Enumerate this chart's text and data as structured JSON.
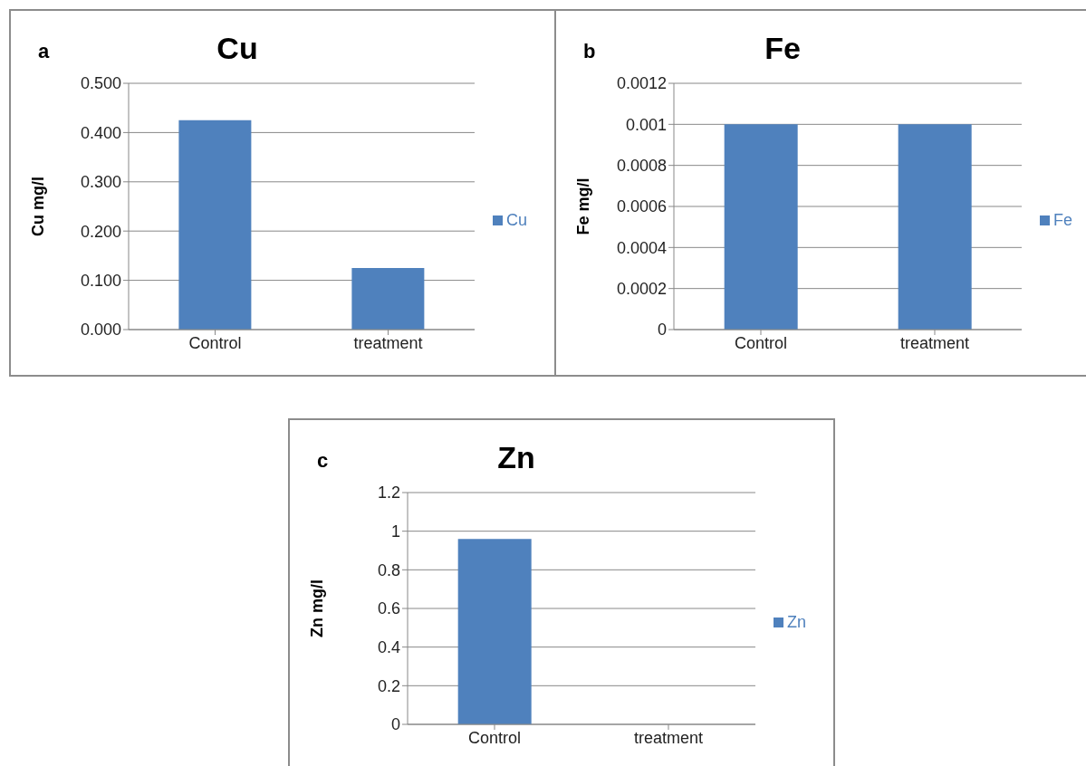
{
  "chart_data": [
    {
      "type": "bar",
      "title": "Cu",
      "annotations": [
        "a"
      ],
      "ylabel": "Cu mg/l",
      "categories": [
        "Control",
        "treatment"
      ],
      "series": [
        {
          "name": "Cu",
          "color": "#4f81bd",
          "values": [
            0.425,
            0.125
          ]
        }
      ],
      "ylim": [
        0,
        0.5
      ],
      "yticks": [
        {
          "value": 0,
          "label": "0.000"
        },
        {
          "value": 0.1,
          "label": "0.100"
        },
        {
          "value": 0.2,
          "label": "0.200"
        },
        {
          "value": 0.3,
          "label": "0.300"
        },
        {
          "value": 0.4,
          "label": "0.400"
        },
        {
          "value": 0.5,
          "label": "0.500"
        }
      ],
      "grid": "y",
      "legend": "right"
    },
    {
      "type": "bar",
      "title": "Fe",
      "annotations": [
        "b"
      ],
      "ylabel": "Fe mg/l",
      "categories": [
        "Control",
        "treatment"
      ],
      "series": [
        {
          "name": "Fe",
          "color": "#4f81bd",
          "values": [
            0.001,
            0.001
          ]
        }
      ],
      "ylim": [
        0,
        0.0012
      ],
      "yticks": [
        0,
        0.0002,
        0.0004,
        0.0006,
        0.0008,
        0.001,
        0.0012
      ],
      "grid": "y",
      "legend": "right"
    },
    {
      "type": "bar",
      "title": "Zn",
      "annotations": [
        "c"
      ],
      "ylabel": "Zn mg/l",
      "categories": [
        "Control",
        "treatment"
      ],
      "series": [
        {
          "name": "Zn",
          "color": "#4f81bd",
          "values": [
            0.96,
            0
          ]
        }
      ],
      "ylim": [
        0,
        1.2
      ],
      "yticks": [
        0,
        0.2,
        0.4,
        0.6,
        0.8,
        1,
        1.2
      ],
      "grid": "y",
      "legend": "right"
    }
  ]
}
